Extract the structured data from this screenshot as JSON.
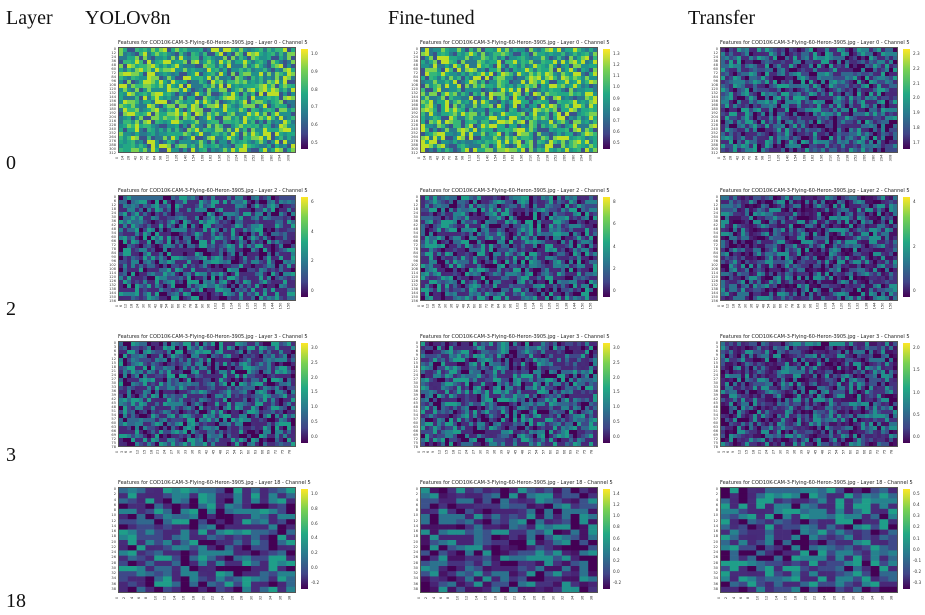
{
  "header": {
    "layer_label": "Layer",
    "columns": [
      "YOLOv8n",
      "Fine-tuned",
      "Transfer"
    ]
  },
  "rows": [
    {
      "layer": "0",
      "title": "Features for COD10K-CAM-3-Flying-60-Heron-3905.jpg - Layer 0 - Channel 5",
      "yticks": [
        "0",
        "12",
        "24",
        "36",
        "48",
        "60",
        "72",
        "84",
        "96",
        "108",
        "120",
        "132",
        "144",
        "156",
        "168",
        "180",
        "192",
        "204",
        "216",
        "228",
        "240",
        "252",
        "264",
        "276",
        "288",
        "300",
        "312"
      ],
      "xticks": [
        "0",
        "14",
        "28",
        "42",
        "56",
        "70",
        "84",
        "98",
        "112",
        "126",
        "140",
        "154",
        "168",
        "182",
        "196",
        "210",
        "224",
        "238",
        "252",
        "266",
        "280",
        "294",
        "308"
      ],
      "colorbars": [
        [
          "1.0",
          "0.9",
          "0.8",
          "0.7",
          "0.6",
          "0.5"
        ],
        [
          "1.3",
          "1.2",
          "1.1",
          "1.0",
          "0.9",
          "0.8",
          "0.7",
          "0.6",
          "0.5"
        ],
        [
          "2.3",
          "2.2",
          "2.1",
          "2.0",
          "1.9",
          "1.8",
          "1.7"
        ]
      ]
    },
    {
      "layer": "2",
      "title": "Features for COD10K-CAM-3-Flying-60-Heron-3905.jpg - Layer 2 - Channel 5",
      "yticks": [
        "0",
        "6",
        "12",
        "18",
        "24",
        "30",
        "36",
        "42",
        "48",
        "54",
        "60",
        "66",
        "72",
        "78",
        "84",
        "90",
        "96",
        "102",
        "108",
        "114",
        "120",
        "126",
        "132",
        "138",
        "144",
        "150",
        "156"
      ],
      "xticks": [
        "0",
        "6",
        "12",
        "18",
        "24",
        "30",
        "36",
        "42",
        "48",
        "54",
        "60",
        "66",
        "72",
        "78",
        "84",
        "90",
        "96",
        "102",
        "108",
        "114",
        "120",
        "126",
        "132",
        "138",
        "144",
        "150",
        "156"
      ],
      "colorbars": [
        [
          "6",
          "4",
          "2",
          "0"
        ],
        [
          "8",
          "6",
          "4",
          "2",
          "0"
        ],
        [
          "4",
          "2",
          "0"
        ]
      ]
    },
    {
      "layer": "3",
      "title": "Features for COD10K-CAM-3-Flying-60-Heron-3905.jpg - Layer 3 - Channel 5",
      "yticks": [
        "0",
        "3",
        "6",
        "9",
        "12",
        "15",
        "18",
        "21",
        "24",
        "27",
        "30",
        "33",
        "36",
        "39",
        "42",
        "45",
        "48",
        "51",
        "54",
        "57",
        "60",
        "63",
        "66",
        "69",
        "72",
        "75",
        "78"
      ],
      "xticks": [
        "0",
        "3",
        "6",
        "9",
        "12",
        "15",
        "18",
        "21",
        "24",
        "27",
        "30",
        "33",
        "36",
        "39",
        "42",
        "45",
        "48",
        "51",
        "54",
        "57",
        "60",
        "63",
        "66",
        "69",
        "72",
        "75",
        "78"
      ],
      "colorbars": [
        [
          "3.0",
          "2.5",
          "2.0",
          "1.5",
          "1.0",
          "0.5",
          "0.0"
        ],
        [
          "3.0",
          "2.5",
          "2.0",
          "1.5",
          "1.0",
          "0.5",
          "0.0"
        ],
        [
          "2.0",
          "1.5",
          "1.0",
          "0.5",
          "0.0"
        ]
      ]
    },
    {
      "layer": "18",
      "title": "Features for COD10K-CAM-3-Flying-60-Heron-3905.jpg - Layer 18 - Channel 5",
      "yticks": [
        "0",
        "2",
        "4",
        "6",
        "8",
        "10",
        "12",
        "14",
        "16",
        "18",
        "20",
        "22",
        "24",
        "26",
        "28",
        "30",
        "32",
        "34",
        "36",
        "38"
      ],
      "xticks": [
        "0",
        "2",
        "4",
        "6",
        "8",
        "10",
        "12",
        "14",
        "16",
        "18",
        "20",
        "22",
        "24",
        "26",
        "28",
        "30",
        "32",
        "34",
        "36",
        "38"
      ],
      "colorbars": [
        [
          "1.0",
          "0.8",
          "0.6",
          "0.4",
          "0.2",
          "0.0",
          "-0.2"
        ],
        [
          "1.4",
          "1.2",
          "1.0",
          "0.8",
          "0.6",
          "0.4",
          "0.2",
          "0.0",
          "-0.2"
        ],
        [
          "0.5",
          "0.4",
          "0.3",
          "0.2",
          "0.1",
          "0.0",
          "-0.1",
          "-0.2",
          "-0.3"
        ]
      ]
    }
  ]
}
